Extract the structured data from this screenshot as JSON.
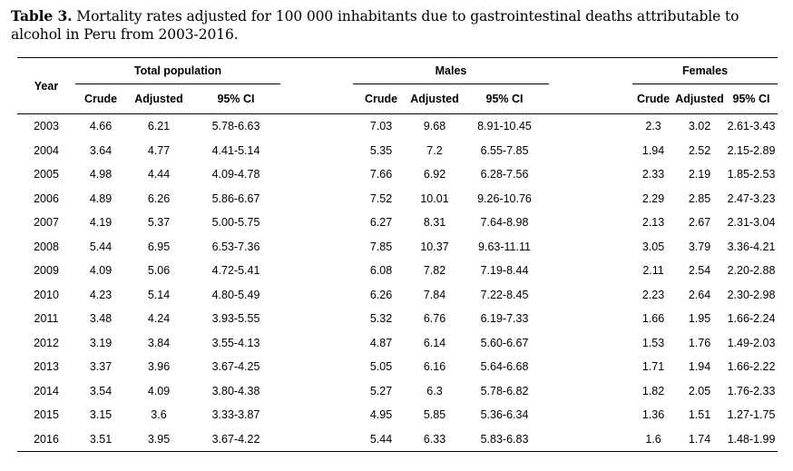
{
  "caption": {
    "label": "Table 3.",
    "text": "Mortality rates adjusted for 100 000 inhabitants due to gastrointestinal deaths attributable to alcohol in Peru from 2003-2016."
  },
  "table": {
    "year_header": "Year",
    "groups": [
      "Total population",
      "Males",
      "Females"
    ],
    "subheaders": [
      "Crude",
      "Adjusted",
      "95% CI"
    ],
    "rows": [
      {
        "year": "2003",
        "total": [
          "4.66",
          "6.21",
          "5.78-6.63"
        ],
        "males": [
          "7.03",
          "9.68",
          "8.91-10.45"
        ],
        "females": [
          "2.3",
          "3.02",
          "2.61-3.43"
        ]
      },
      {
        "year": "2004",
        "total": [
          "3.64",
          "4.77",
          "4.41-5.14"
        ],
        "males": [
          "5.35",
          "7.2",
          "6.55-7.85"
        ],
        "females": [
          "1.94",
          "2.52",
          "2.15-2.89"
        ]
      },
      {
        "year": "2005",
        "total": [
          "4.98",
          "4.44",
          "4.09-4.78"
        ],
        "males": [
          "7.66",
          "6.92",
          "6.28-7.56"
        ],
        "females": [
          "2.33",
          "2.19",
          "1.85-2.53"
        ]
      },
      {
        "year": "2006",
        "total": [
          "4.89",
          "6.26",
          "5.86-6.67"
        ],
        "males": [
          "7.52",
          "10.01",
          "9.26-10.76"
        ],
        "females": [
          "2.29",
          "2.85",
          "2.47-3.23"
        ]
      },
      {
        "year": "2007",
        "total": [
          "4.19",
          "5.37",
          "5.00-5.75"
        ],
        "males": [
          "6.27",
          "8.31",
          "7.64-8.98"
        ],
        "females": [
          "2.13",
          "2.67",
          "2.31-3.04"
        ]
      },
      {
        "year": "2008",
        "total": [
          "5.44",
          "6.95",
          "6.53-7.36"
        ],
        "males": [
          "7.85",
          "10.37",
          "9.63-11.11"
        ],
        "females": [
          "3.05",
          "3.79",
          "3.36-4.21"
        ]
      },
      {
        "year": "2009",
        "total": [
          "4.09",
          "5.06",
          "4.72-5.41"
        ],
        "males": [
          "6.08",
          "7.82",
          "7.19-8.44"
        ],
        "females": [
          "2.11",
          "2.54",
          "2.20-2.88"
        ]
      },
      {
        "year": "2010",
        "total": [
          "4.23",
          "5.14",
          "4.80-5.49"
        ],
        "males": [
          "6.26",
          "7.84",
          "7.22-8.45"
        ],
        "females": [
          "2.23",
          "2.64",
          "2.30-2.98"
        ]
      },
      {
        "year": "2011",
        "total": [
          "3.48",
          "4.24",
          "3.93-5.55"
        ],
        "males": [
          "5.32",
          "6.76",
          "6.19-7.33"
        ],
        "females": [
          "1.66",
          "1.95",
          "1.66-2.24"
        ]
      },
      {
        "year": "2012",
        "total": [
          "3.19",
          "3.84",
          "3.55-4.13"
        ],
        "males": [
          "4.87",
          "6.14",
          "5.60-6.67"
        ],
        "females": [
          "1.53",
          "1.76",
          "1.49-2.03"
        ]
      },
      {
        "year": "2013",
        "total": [
          "3.37",
          "3.96",
          "3.67-4.25"
        ],
        "males": [
          "5.05",
          "6.16",
          "5.64-6.68"
        ],
        "females": [
          "1.71",
          "1.94",
          "1.66-2.22"
        ]
      },
      {
        "year": "2014",
        "total": [
          "3.54",
          "4.09",
          "3.80-4.38"
        ],
        "males": [
          "5.27",
          "6.3",
          "5.78-6.82"
        ],
        "females": [
          "1.82",
          "2.05",
          "1.76-2.33"
        ]
      },
      {
        "year": "2015",
        "total": [
          "3.15",
          "3.6",
          "3.33-3.87"
        ],
        "males": [
          "4.95",
          "5.85",
          "5.36-6.34"
        ],
        "females": [
          "1.36",
          "1.51",
          "1.27-1.75"
        ]
      },
      {
        "year": "2016",
        "total": [
          "3.51",
          "3.95",
          "3.67-4.22"
        ],
        "males": [
          "5.44",
          "6.33",
          "5.83-6.83"
        ],
        "females": [
          "1.6",
          "1.74",
          "1.48-1.99"
        ]
      }
    ]
  }
}
